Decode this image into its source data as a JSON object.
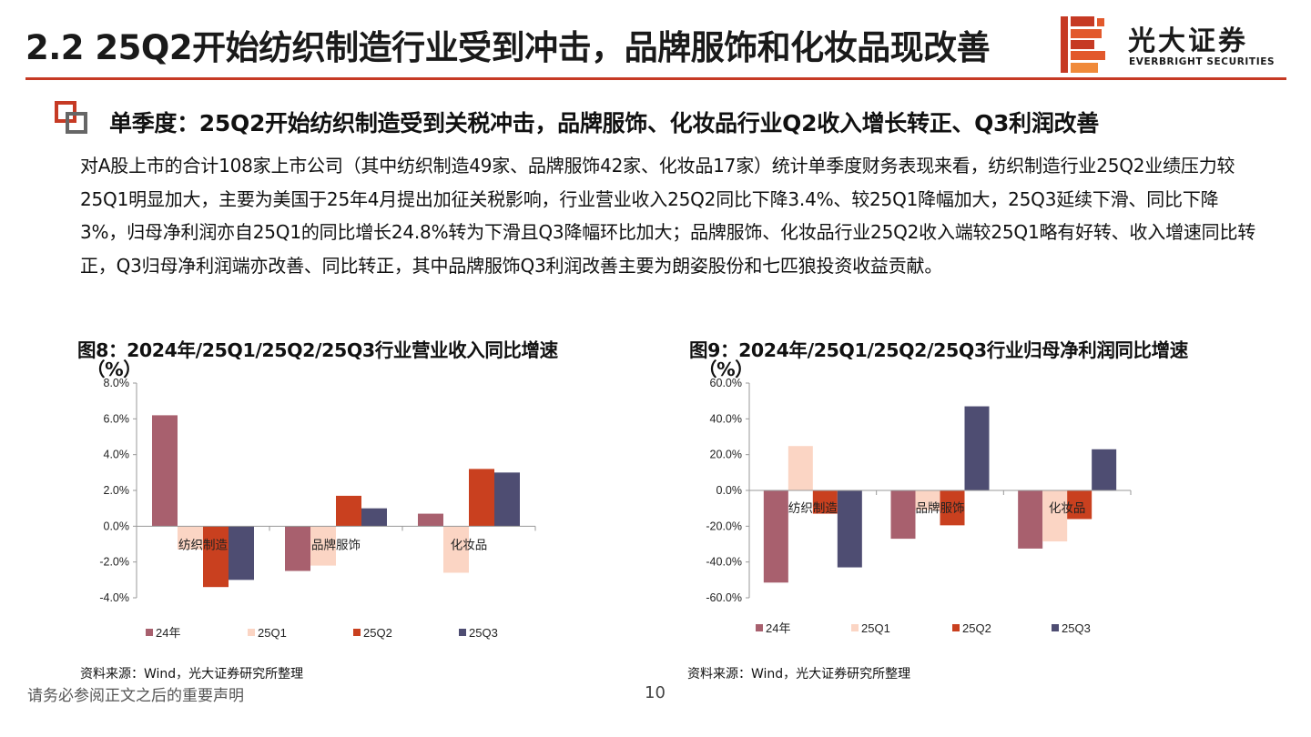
{
  "page": {
    "title": "2.2 25Q2开始纺织制造行业受到冲击，品牌服饰和化妆品现改善",
    "subtitle": "单季度：25Q2开始纺织制造受到关税冲击，品牌服饰、化妆品行业Q2收入增长转正、Q3利润改善",
    "body": "对A股上市的合计108家上市公司（其中纺织制造49家、品牌服饰42家、化妆品17家）统计单季度财务表现来看，纺织制造行业25Q2业绩压力较25Q1明显加大，主要为美国于25年4月提出加征关税影响，行业营业收入25Q2同比下降3.4%、较25Q1降幅加大，25Q3延续下滑、同比下降3%，归母净利润亦自25Q1的同比增长24.8%转为下滑且Q3降幅环比加大；品牌服饰、化妆品行业25Q2收入端较25Q1略有好转、收入增速同比转正，Q3归母净利润端亦改善、同比转正，其中品牌服饰Q3利润改善主要为朗姿股份和七匹狼投资收益贡献。",
    "disclaimer": "请务必参阅正文之后的重要声明",
    "page_number": "10",
    "accent_color": "#c63a24"
  },
  "logo": {
    "name_cn": "光大证券",
    "name_en": "EVERBRIGHT SECURITIES",
    "colors": [
      "#c63a24",
      "#e2592c",
      "#f08a3a"
    ]
  },
  "figures": [
    {
      "title": "图8：2024年/25Q1/25Q2/25Q3行业营业收入同比增速",
      "unit": "（%）",
      "source": "资料来源：Wind，光大证券研究所整理"
    },
    {
      "title": "图9：2024年/25Q1/25Q2/25Q3行业归母净利润同比增速",
      "unit": "（%）",
      "source": "资料来源：Wind，光大证券研究所整理"
    }
  ],
  "chart_data": [
    {
      "type": "bar",
      "categories": [
        "纺织制造",
        "品牌服饰",
        "化妆品"
      ],
      "series": [
        {
          "name": "24年",
          "color": "#a8606e",
          "values": [
            6.2,
            -2.5,
            0.7
          ]
        },
        {
          "name": "25Q1",
          "color": "#fbd5c4",
          "values": [
            -1.3,
            -2.2,
            -2.6
          ]
        },
        {
          "name": "25Q2",
          "color": "#c9401f",
          "values": [
            -3.4,
            1.7,
            3.2
          ]
        },
        {
          "name": "25Q3",
          "color": "#4e4d72",
          "values": [
            -3.0,
            1.0,
            3.0
          ]
        }
      ],
      "ylim": [
        -4,
        8
      ],
      "yticks": [
        -4,
        -2,
        0,
        2,
        4,
        6,
        8
      ],
      "ytick_labels": [
        "-4.0%",
        "-2.0%",
        "0.0%",
        "2.0%",
        "4.0%",
        "6.0%",
        "8.0%"
      ],
      "legend_position": "bottom",
      "grid": false
    },
    {
      "type": "bar",
      "categories": [
        "纺织制造",
        "品牌服饰",
        "化妆品"
      ],
      "series": [
        {
          "name": "24年",
          "color": "#a8606e",
          "values": [
            -51.5,
            -27.0,
            -32.5
          ]
        },
        {
          "name": "25Q1",
          "color": "#fbd5c4",
          "values": [
            24.8,
            -11.0,
            -28.5
          ]
        },
        {
          "name": "25Q2",
          "color": "#c9401f",
          "values": [
            -13.0,
            -19.5,
            -16.0
          ]
        },
        {
          "name": "25Q3",
          "color": "#4e4d72",
          "values": [
            -43.0,
            47.0,
            23.0
          ]
        }
      ],
      "ylim": [
        -60,
        60
      ],
      "yticks": [
        -60,
        -40,
        -20,
        0,
        20,
        40,
        60
      ],
      "ytick_labels": [
        "-60.0%",
        "-40.0%",
        "-20.0%",
        "0.0%",
        "20.0%",
        "40.0%",
        "60.0%"
      ],
      "legend_position": "bottom",
      "grid": false
    }
  ]
}
